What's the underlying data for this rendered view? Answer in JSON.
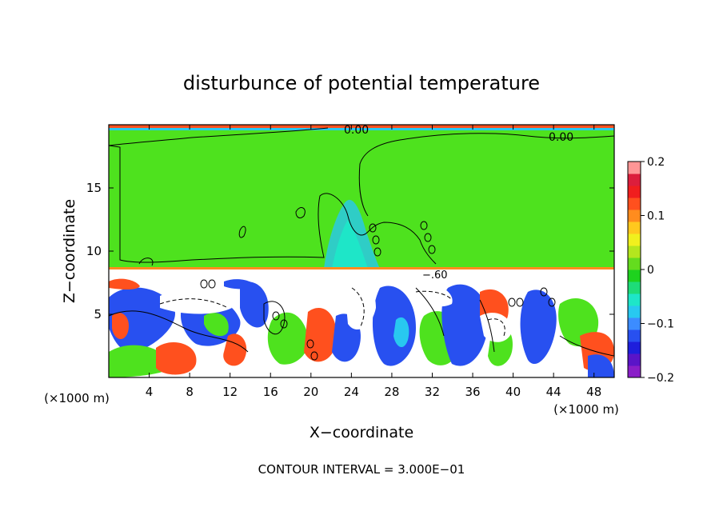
{
  "chart_data": {
    "type": "heatmap",
    "title": "disturbunce of potential temperature",
    "xlabel": "X−coordinate",
    "ylabel": "Z−coordinate",
    "x_unit_left": "(×1000 m)",
    "x_unit_right": "(×1000 m)",
    "xlim": [
      0,
      50
    ],
    "ylim": [
      0,
      20
    ],
    "x_ticks": [
      4,
      8,
      12,
      16,
      20,
      24,
      28,
      32,
      36,
      40,
      44,
      48
    ],
    "y_ticks": [
      5,
      10,
      15
    ],
    "x_tick_labels": [
      "4",
      "8",
      "12",
      "16",
      "20",
      "24",
      "28",
      "32",
      "36",
      "40",
      "44",
      "48"
    ],
    "y_tick_labels": [
      "5",
      "10",
      "15"
    ],
    "colorbar": {
      "range": [
        -0.2,
        0.2
      ],
      "tick_values": [
        0.2,
        0.1,
        0,
        -0.1,
        -0.2
      ],
      "tick_labels": [
        "0.2",
        "0.1",
        "0",
        "−0.1",
        "−0.2"
      ],
      "colors": [
        "#8a1ec8",
        "#5a14c8",
        "#1e1edc",
        "#2850f0",
        "#3c8cff",
        "#28c8f0",
        "#1ee6c8",
        "#1edc78",
        "#1ed21e",
        "#64dc1e",
        "#b4e61e",
        "#f0f01e",
        "#ffc81e",
        "#ff8c1e",
        "#ff501e",
        "#f01e1e",
        "#dc1e3c",
        "#ff9696"
      ]
    },
    "contour_labels": [
      "0.00",
      "0.00",
      "−.60"
    ],
    "contour_interval_text": "CONTOUR INTERVAL = 3.000E−01",
    "colors": {
      "upper": "#4ee21e",
      "positive": "#f01e1e",
      "negative": "#2850f0",
      "white": "#ffffff"
    }
  }
}
